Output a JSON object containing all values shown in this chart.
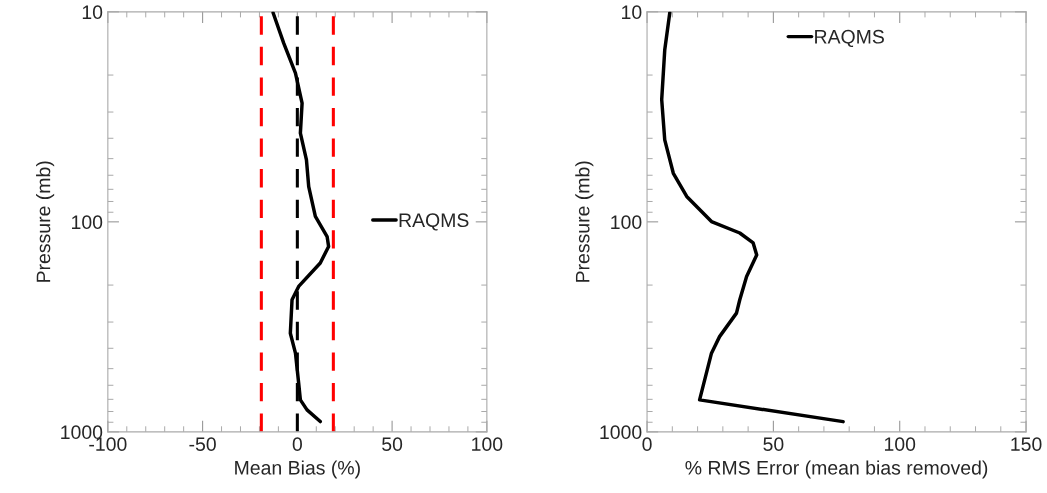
{
  "chart_data": [
    {
      "type": "line",
      "xlabel": "Mean Bias (%)",
      "ylabel": "Pressure (mb)",
      "log": "y",
      "xlim": [
        -100,
        100
      ],
      "xticks": [
        -100,
        -50,
        0,
        50,
        100
      ],
      "ylim": [
        1000,
        10
      ],
      "yticks": [
        10,
        100,
        1000
      ],
      "grid": false,
      "legend": "center right",
      "series": [
        {
          "name": "RAQMS",
          "color": "#000000",
          "x": [
            -12.8,
            -7.2,
            -1,
            2.5,
            1.6,
            4.8,
            6,
            9.5,
            15.7,
            16.5,
            12.1,
            0.7,
            -2.8,
            -3.7,
            -1,
            0.7,
            1.6,
            5.1,
            12.1
          ],
          "values": [
            10.1,
            14.1,
            19.6,
            27.2,
            37.8,
            50.7,
            67.9,
            94.3,
            117.5,
            131,
            157,
            203,
            235,
            339,
            422,
            587,
            704,
            786,
            893
          ]
        }
      ],
      "ref_lines": [
        {
          "axis": "x",
          "value": -19,
          "color": "#ff0000",
          "line_style": "dashed"
        },
        {
          "axis": "x",
          "value": 19,
          "color": "#ff0000",
          "line_style": "dashed"
        },
        {
          "axis": "x",
          "value": 0,
          "color": "#000000",
          "line_style": "dashed"
        }
      ]
    },
    {
      "type": "line",
      "xlabel": "% RMS Error (mean bias removed)",
      "ylabel": "Pressure (mb)",
      "log": "y",
      "xlim": [
        0,
        150
      ],
      "xticks": [
        0,
        50,
        100,
        150
      ],
      "ylim": [
        1000,
        10
      ],
      "yticks": [
        10,
        100,
        1000
      ],
      "grid": false,
      "legend": "upper center",
      "series": [
        {
          "name": "RAQMS",
          "color": "#000000",
          "x": [
            9.0,
            7.0,
            5.8,
            7.0,
            10.4,
            15.7,
            25.5,
            36.7,
            42.0,
            43.4,
            39.4,
            36.7,
            35.4,
            28.7,
            25.5,
            20.8,
            77.6
          ],
          "values": [
            10.1,
            15.2,
            26.2,
            40.7,
            58.7,
            75.7,
            99.7,
            113,
            126,
            144,
            182,
            235,
            272,
            352,
            422,
            704,
            894
          ]
        }
      ]
    }
  ]
}
